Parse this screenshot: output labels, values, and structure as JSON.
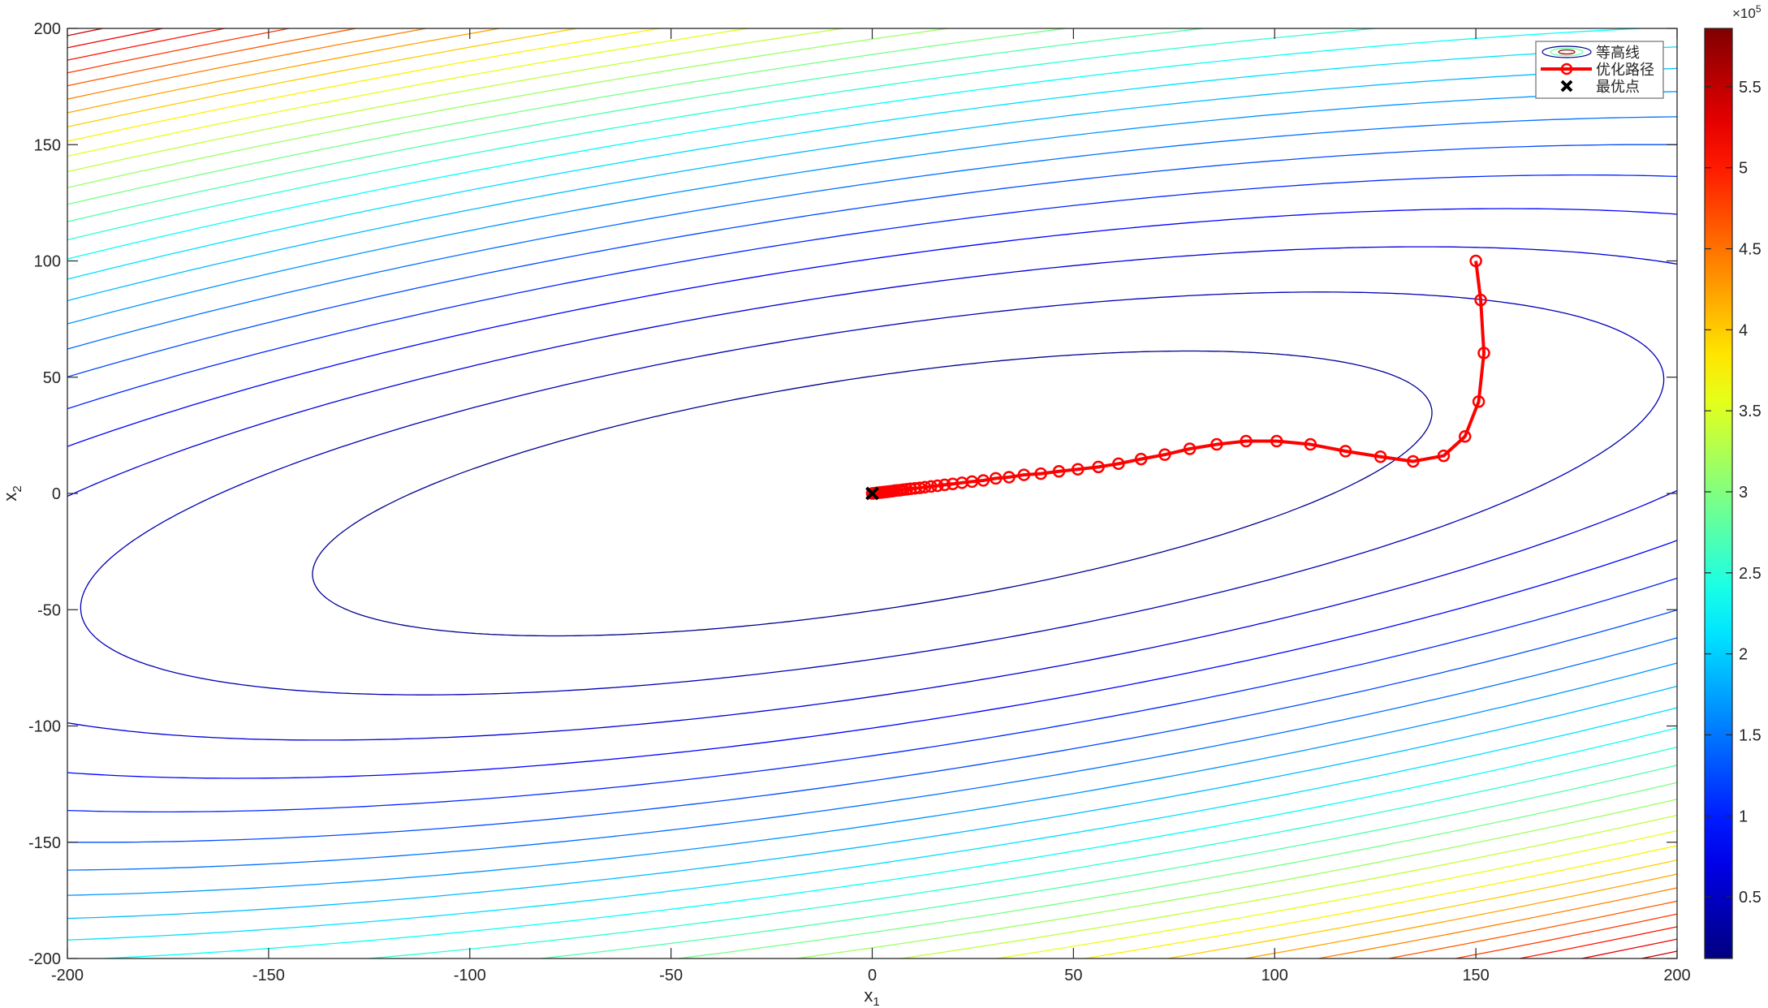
{
  "chart_data": {
    "type": "contour",
    "xlabel": "x",
    "xlabel_sub": "1",
    "ylabel": "x",
    "ylabel_sub": "2",
    "xlim": [
      -200,
      200
    ],
    "ylim": [
      -200,
      200
    ],
    "xticks": [
      -200,
      -150,
      -100,
      -50,
      0,
      50,
      100,
      150,
      200
    ],
    "yticks": [
      -200,
      -150,
      -100,
      -50,
      0,
      50,
      100,
      150,
      200
    ],
    "grid": false,
    "colormap": "jet",
    "colorbar": {
      "clim": [
        0.12,
        5.86
      ],
      "ticks": [
        0.5,
        1,
        1.5,
        2,
        2.5,
        3,
        3.5,
        4,
        4.5,
        5,
        5.5
      ],
      "exponent_label": "×10",
      "exponent": "5"
    },
    "legend": {
      "placement": "top-right",
      "entries": [
        "等高线",
        "优化路径",
        "最优点"
      ]
    },
    "path_color": "#ff0000",
    "optimum_color": "#000000",
    "optimization_path": [
      [
        150,
        100
      ],
      [
        151.2,
        83.2
      ],
      [
        152,
        60.4
      ],
      [
        150.7,
        39.5
      ],
      [
        147.3,
        24.5
      ],
      [
        142,
        16.2
      ],
      [
        134.4,
        13.8
      ],
      [
        126.3,
        15.8
      ],
      [
        117.6,
        18.2
      ],
      [
        108.9,
        21.1
      ],
      [
        100.5,
        22.5
      ],
      [
        92.9,
        22.5
      ],
      [
        85.6,
        21.1
      ],
      [
        78.9,
        19.2
      ],
      [
        72.7,
        16.7
      ],
      [
        66.8,
        14.8
      ],
      [
        61.2,
        12.8
      ],
      [
        56.2,
        11.4
      ],
      [
        51.1,
        10.4
      ],
      [
        46.4,
        9.5
      ],
      [
        41.9,
        8.5
      ],
      [
        37.7,
        8
      ],
      [
        34,
        7
      ],
      [
        30.7,
        6.5
      ],
      [
        27.6,
        5.6
      ],
      [
        24.8,
        5.1
      ],
      [
        22.3,
        4.6
      ],
      [
        20,
        4.1
      ],
      [
        18,
        3.7
      ],
      [
        16.2,
        3.3
      ],
      [
        14.6,
        3.0
      ],
      [
        13.1,
        2.7
      ],
      [
        11.8,
        2.4
      ],
      [
        10.6,
        2.2
      ],
      [
        9.5,
        2.0
      ],
      [
        8.6,
        1.8
      ],
      [
        7.7,
        1.6
      ],
      [
        6.9,
        1.4
      ],
      [
        6.2,
        1.3
      ],
      [
        5.6,
        1.2
      ],
      [
        5,
        1.0
      ],
      [
        4.5,
        0.9
      ],
      [
        4,
        0.8
      ],
      [
        3.6,
        0.7
      ],
      [
        3.2,
        0.65
      ],
      [
        2.9,
        0.6
      ],
      [
        2.6,
        0.5
      ],
      [
        2.3,
        0.45
      ],
      [
        2.1,
        0.4
      ],
      [
        1.9,
        0.38
      ],
      [
        1.5,
        0.3
      ],
      [
        1,
        0.2
      ],
      [
        0.5,
        0.1
      ],
      [
        0,
        0
      ]
    ],
    "optimum": [
      0,
      0
    ]
  }
}
